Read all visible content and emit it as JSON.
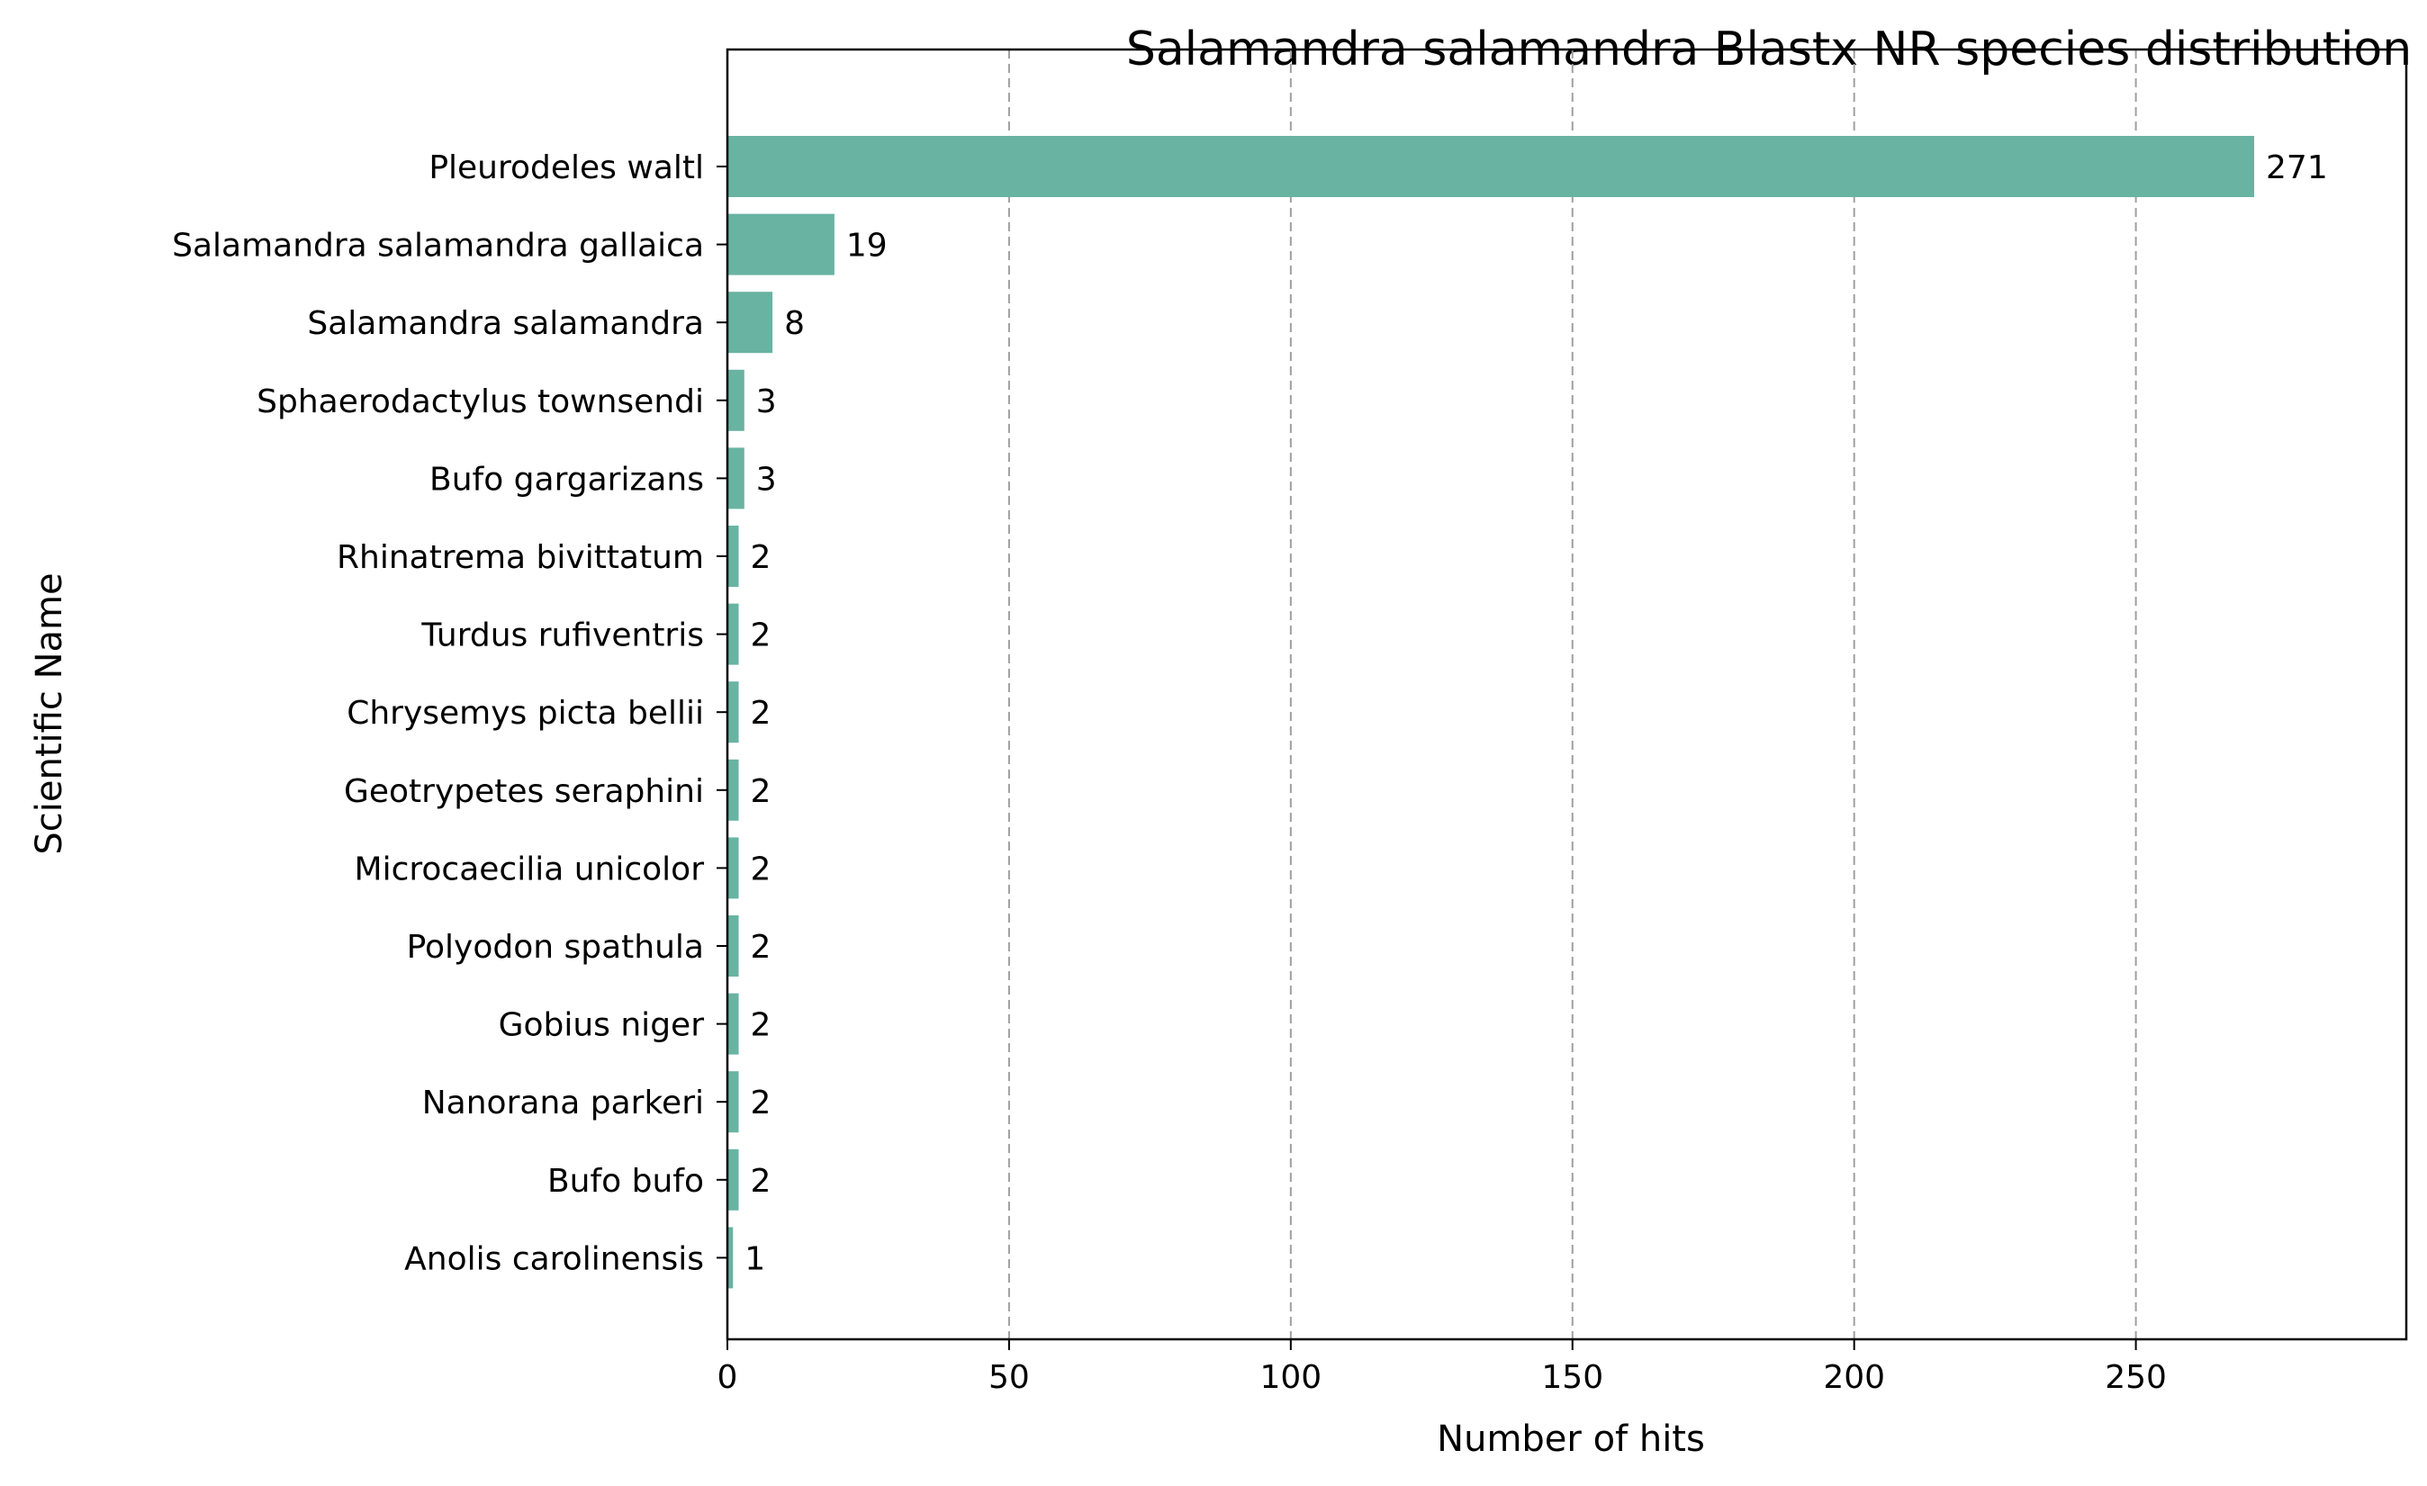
{
  "chart_data": {
    "type": "bar",
    "orientation": "horizontal",
    "title": "Salamandra salamandra Blastx NR species distribution",
    "xlabel": "Number of hits",
    "ylabel": "Scientific Name",
    "categories": [
      "Pleurodeles waltl",
      "Salamandra salamandra gallaica",
      "Salamandra salamandra",
      "Sphaerodactylus townsendi",
      "Bufo gargarizans",
      "Rhinatrema bivittatum",
      "Turdus rufiventris",
      "Chrysemys picta bellii",
      "Geotrypetes seraphini",
      "Microcaecilia unicolor",
      "Polyodon spathula",
      "Gobius niger",
      "Nanorana parkeri",
      "Bufo bufo",
      "Anolis carolinensis"
    ],
    "values": [
      271,
      19,
      8,
      3,
      3,
      2,
      2,
      2,
      2,
      2,
      2,
      2,
      2,
      2,
      1
    ],
    "data_labels": [
      "271",
      "19",
      "8",
      "3",
      "3",
      "2",
      "2",
      "2",
      "2",
      "2",
      "2",
      "2",
      "2",
      "2",
      "1"
    ],
    "xlim": [
      0,
      298
    ],
    "xticks": [
      0,
      50,
      100,
      150,
      200,
      250
    ],
    "xtick_labels": [
      "0",
      "50",
      "100",
      "150",
      "200",
      "250"
    ],
    "grid": "x-axis dashed vertical lines",
    "legend": "none",
    "colors": {
      "bar": "#69b3a2",
      "grid": "#a0a0a0",
      "axis": "#000000"
    }
  }
}
